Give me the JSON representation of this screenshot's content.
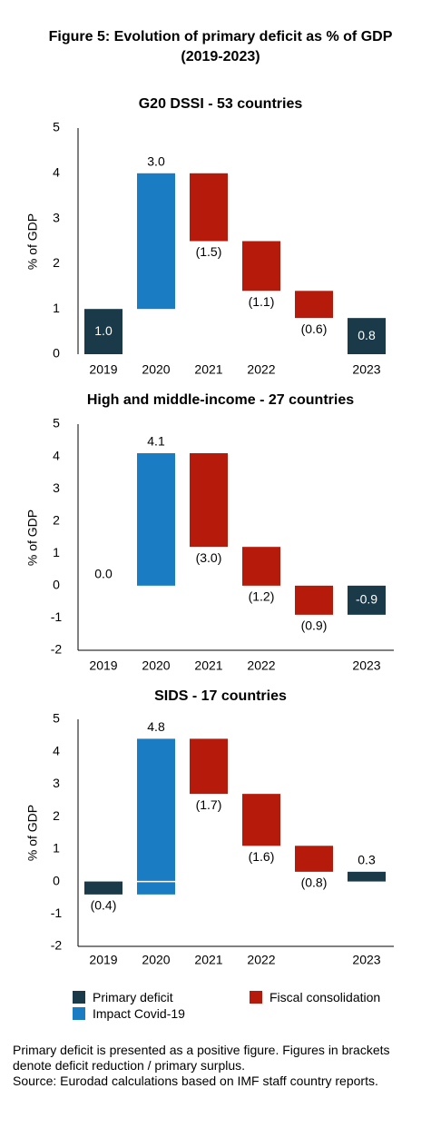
{
  "figure": {
    "title_line1": "Figure 5: Evolution of primary deficit as % of GDP",
    "title_line2": "(2019-2023)"
  },
  "colors": {
    "deficit": "#1a3a4a",
    "covid": "#1a7dc4",
    "consolidation": "#b51a0a"
  },
  "legend": {
    "deficit": "Primary deficit",
    "covid": "Impact Covid-19",
    "consolidation": "Fiscal consolidation"
  },
  "footnote": {
    "line1": "Primary deficit is presented as a positive figure. Figures in brackets denote deficit reduction / primary surplus.",
    "line2": "Source: Eurodad calculations based on IMF staff country reports."
  },
  "chart_data": [
    {
      "type": "bar",
      "title": "G20 DSSI - 53 countries",
      "ylabel": "% of GDP",
      "ylim": [
        0,
        5
      ],
      "yticks": [
        "0",
        "1",
        "2",
        "3",
        "4",
        "5"
      ],
      "categories": [
        "2019",
        "2020",
        "2021",
        "2022",
        "",
        "2023"
      ],
      "bars": [
        {
          "kind": "deficit",
          "base": 0,
          "top": 1.0,
          "label": "1.0",
          "label_pos": "inside"
        },
        {
          "kind": "covid",
          "base": 1.0,
          "top": 4.0,
          "label": "3.0",
          "label_pos": "above"
        },
        {
          "kind": "consolidation",
          "base": 2.5,
          "top": 4.0,
          "label": "(1.5)",
          "label_pos": "below"
        },
        {
          "kind": "consolidation",
          "base": 1.4,
          "top": 2.5,
          "label": "(1.1)",
          "label_pos": "below"
        },
        {
          "kind": "consolidation",
          "base": 0.8,
          "top": 1.4,
          "label": "(0.6)",
          "label_pos": "below"
        },
        {
          "kind": "deficit",
          "base": 0,
          "top": 0.8,
          "label": "0.8",
          "label_pos": "inside"
        }
      ]
    },
    {
      "type": "bar",
      "title": "High and middle-income - 27 countries",
      "ylabel": "% of GDP",
      "ylim": [
        -2,
        5
      ],
      "yticks": [
        "-2",
        "-1",
        "0",
        "1",
        "2",
        "3",
        "4",
        "5"
      ],
      "categories": [
        "2019",
        "2020",
        "2021",
        "2022",
        "",
        "2023"
      ],
      "bars": [
        {
          "kind": "deficit",
          "base": 0,
          "top": 0.0,
          "label": "0.0",
          "label_pos": "above"
        },
        {
          "kind": "covid",
          "base": 0,
          "top": 4.1,
          "label": "4.1",
          "label_pos": "above"
        },
        {
          "kind": "consolidation",
          "base": 1.2,
          "top": 4.1,
          "label": "(3.0)",
          "label_pos": "below"
        },
        {
          "kind": "consolidation",
          "base": 0.0,
          "top": 1.2,
          "label": "(1.2)",
          "label_pos": "below"
        },
        {
          "kind": "consolidation",
          "base": -0.9,
          "top": 0.0,
          "label": "(0.9)",
          "label_pos": "below"
        },
        {
          "kind": "deficit",
          "base": -0.9,
          "top": 0,
          "label": "-0.9",
          "label_pos": "inside"
        }
      ]
    },
    {
      "type": "bar",
      "title": "SIDS - 17  countries",
      "ylabel": "% of GDP",
      "ylim": [
        -2,
        5
      ],
      "yticks": [
        "-2",
        "-1",
        "0",
        "1",
        "2",
        "3",
        "4",
        "5"
      ],
      "categories": [
        "2019",
        "2020",
        "2021",
        "2022",
        "",
        "2023"
      ],
      "bars": [
        {
          "kind": "deficit",
          "base": -0.4,
          "top": 0,
          "label": "(0.4)",
          "label_pos": "below"
        },
        {
          "kind": "covid",
          "base": -0.4,
          "top": 4.4,
          "label": "4.8",
          "label_pos": "above",
          "split_at": 0
        },
        {
          "kind": "consolidation",
          "base": 2.7,
          "top": 4.4,
          "label": "(1.7)",
          "label_pos": "below"
        },
        {
          "kind": "consolidation",
          "base": 1.1,
          "top": 2.7,
          "label": "(1.6)",
          "label_pos": "below"
        },
        {
          "kind": "consolidation",
          "base": 0.3,
          "top": 1.1,
          "label": "(0.8)",
          "label_pos": "below"
        },
        {
          "kind": "deficit",
          "base": 0,
          "top": 0.3,
          "label": "0.3",
          "label_pos": "above"
        }
      ]
    }
  ]
}
